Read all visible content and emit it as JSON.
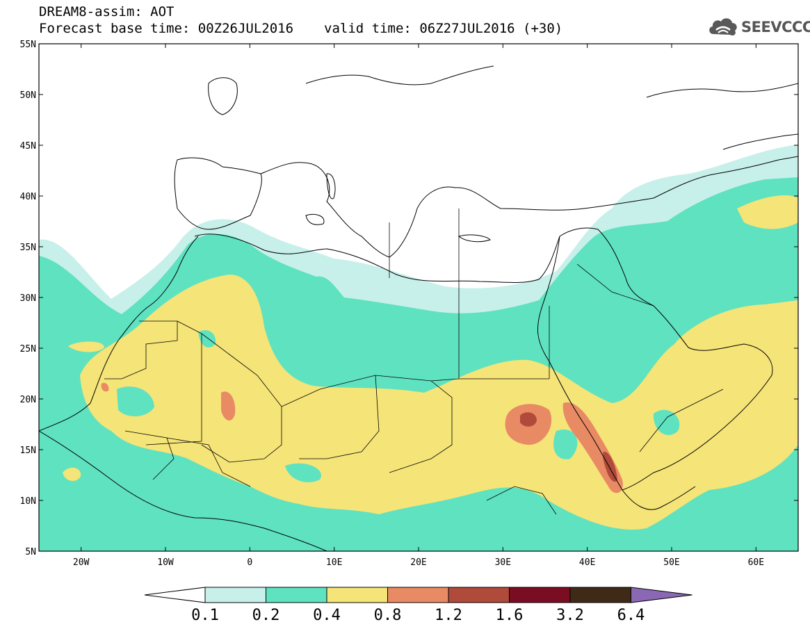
{
  "header": {
    "title": "DREAM8-assim: AOT",
    "base_time": "Forecast base time: 00Z26JUL2016",
    "valid_time": "valid time: 06Z27JUL2016 (+30)"
  },
  "logo": {
    "text": "SEEVCCC",
    "icon": "cloud-icon"
  },
  "map": {
    "lon_range": [
      -25,
      65
    ],
    "lat_range": [
      5,
      55
    ],
    "lat_ticks": [
      "5N",
      "10N",
      "15N",
      "20N",
      "25N",
      "30N",
      "35N",
      "40N",
      "45N",
      "50N",
      "55N"
    ],
    "lon_ticks": [
      "20W",
      "10W",
      "0",
      "10E",
      "20E",
      "30E",
      "40E",
      "50E",
      "60E"
    ]
  },
  "legend": {
    "levels": [
      "0.1",
      "0.2",
      "0.4",
      "0.8",
      "1.2",
      "1.6",
      "3.2",
      "6.4"
    ],
    "colors": [
      "#c8f0ea",
      "#5fe2c0",
      "#f5e478",
      "#e88a64",
      "#b04a3a",
      "#7a0d22",
      "#3f2a18"
    ],
    "over_color": "#8a68b4",
    "under_color": "#ffffff"
  }
}
